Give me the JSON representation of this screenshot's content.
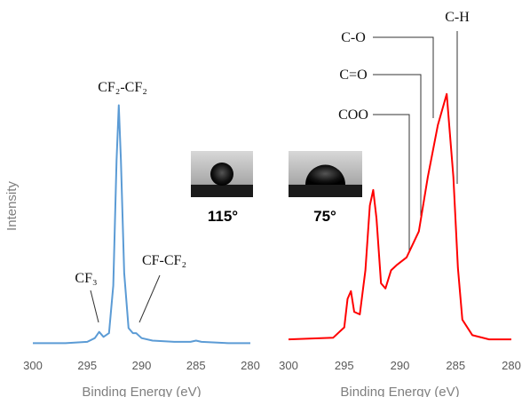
{
  "chart_data": [
    {
      "type": "line",
      "ylabel": "Intensity",
      "xlabel": "Binding Energy (eV)",
      "xlim": [
        300,
        280
      ],
      "xticks": [
        300,
        295,
        290,
        285,
        280
      ],
      "ylim": [
        0,
        100
      ],
      "grid": false,
      "annotations": [
        "CF₂-CF₂",
        "CF₃",
        "CF-CF₂"
      ],
      "series": [
        {
          "color": "#5b9bd5",
          "x": [
            300,
            297,
            295,
            294.3,
            293.9,
            293.5,
            293,
            292.6,
            292.3,
            292.1,
            291.9,
            291.6,
            291.2,
            290.8,
            290.5,
            290,
            289,
            287,
            285.5,
            285,
            284.5,
            282,
            280
          ],
          "values": [
            2,
            2,
            2.5,
            4,
            6.5,
            4.5,
            6,
            25,
            75,
            97,
            75,
            30,
            8,
            6,
            6,
            4,
            3,
            2.5,
            2.5,
            3,
            2.5,
            2,
            2
          ]
        }
      ]
    },
    {
      "type": "line",
      "xlabel": "Binding Energy (eV)",
      "xlim": [
        300,
        280
      ],
      "xticks": [
        300,
        295,
        290,
        285,
        280
      ],
      "ylim": [
        0,
        100
      ],
      "grid": false,
      "annotations": [
        "C-H",
        "C-O",
        "C=O",
        "COO"
      ],
      "series": [
        {
          "color": "#ff0000",
          "x": [
            300,
            296,
            295,
            294.7,
            294.4,
            294.1,
            293.6,
            293.1,
            292.7,
            292.4,
            292.1,
            291.7,
            291.3,
            290.8,
            290.3,
            289.4,
            288.3,
            287.5,
            286.6,
            285.8,
            285.2,
            284.8,
            284.4,
            283.5,
            282,
            280
          ],
          "values": [
            3.4,
            4,
            8,
            19,
            22,
            14,
            13,
            30,
            55,
            61,
            50,
            25,
            23,
            30,
            32,
            35,
            45,
            66,
            86,
            98,
            66,
            31,
            11,
            5,
            3.4,
            3.4
          ]
        }
      ]
    }
  ],
  "insets": [
    {
      "label": "115°"
    },
    {
      "label": "75°"
    }
  ]
}
